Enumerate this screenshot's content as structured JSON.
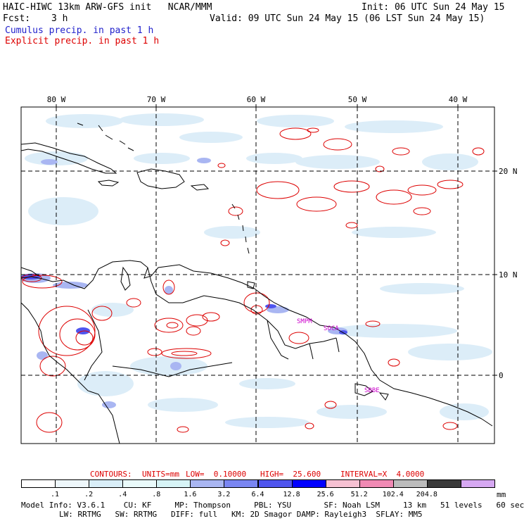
{
  "header": {
    "title_left": "HAIC-HIWC 13km ARW-GFS init   NCAR/MMM",
    "init": "Init: 06 UTC Sun 24 May 15",
    "fcst_label": "Fcst:",
    "fcst_value": "3 h",
    "valid": "Valid: 09 UTC Sun 24 May 15 (06 LST Sun 24 May 15)",
    "cumulus": "Cumulus precip. in past 1 h",
    "explicit": "Explicit precip. in past 1 h"
  },
  "map": {
    "lon_labels": [
      "80 W",
      "70 W",
      "60 W",
      "50 W",
      "40 W"
    ],
    "lat_labels": [
      "20 N",
      "10 N",
      "0"
    ],
    "stations": [
      "SMPM",
      "SOCA",
      "SBBE"
    ],
    "colors": {
      "coast": "#000000",
      "explicit_contour": "#dd0000",
      "station": "#cc00cc",
      "grid": "#000000"
    }
  },
  "contours_line": {
    "label": "CONTOURS:",
    "units": "UNITS=mm",
    "low": "LOW=  0.10000",
    "high": "HIGH=  25.600",
    "interval": "INTERVAL=X  4.0000"
  },
  "colorbar": {
    "labels": [
      ".1",
      ".2",
      ".4",
      ".8",
      "1.6",
      "3.2",
      "6.4",
      "12.8",
      "25.6",
      "51.2",
      "102.4",
      "204.8"
    ],
    "colors": [
      "#ffffff",
      "#eef7fb",
      "#d9eef8",
      "#eafbfb",
      "#d7f4f6",
      "#a9b6f2",
      "#7a86f2",
      "#4f55ee",
      "#0000ff",
      "#f6c1d2",
      "#f08ab4",
      "#bcbcbc",
      "#3a3a3a",
      "#d6a8f2"
    ],
    "unit": "mm"
  },
  "model_info": {
    "line1": "Model Info: V3.6.1    CU: KF     MP: Thompson     PBL: YSU       SF: Noah LSM     13 km   51 levels   60 sec",
    "line2": "LW: RRTMG   SW: RRTMG   DIFF: full   KM: 2D Smagor DAMP: Rayleigh3  SFLAY: MM5"
  }
}
